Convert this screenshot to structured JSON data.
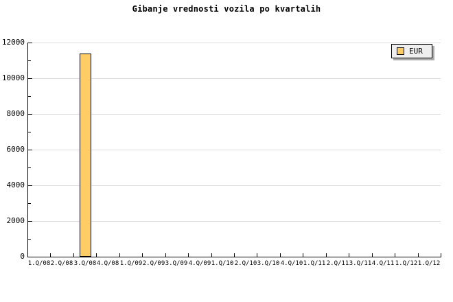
{
  "title": "Gibanje vrednosti vozila po kvartalih",
  "legend": {
    "label": "EUR"
  },
  "colors": {
    "background": "#FFFFFF",
    "text": "#000000",
    "axis": "#000000",
    "grid": "#DCDCDC",
    "bar_fill": "#FFCC66",
    "bar_border": "#000000",
    "legend_bg": "#EFEFEF",
    "legend_shadow": "#ADADAD"
  },
  "chart_data": {
    "type": "bar",
    "title": "Gibanje vrednosti vozila po kvartalih",
    "categories": [
      "1.Q/08",
      "2.Q/08",
      "3.Q/08",
      "4.Q/08",
      "1.Q/09",
      "2.Q/09",
      "3.Q/09",
      "4.Q/09",
      "1.Q/10",
      "2.Q/10",
      "3.Q/10",
      "4.Q/10",
      "1.Q/11",
      "2.Q/11",
      "3.Q/11",
      "4.Q/11",
      "1.Q/12",
      "1.Q/12"
    ],
    "series": [
      {
        "name": "EUR",
        "values": [
          0,
          0,
          11380,
          0,
          0,
          0,
          0,
          0,
          0,
          0,
          0,
          0,
          0,
          0,
          0,
          0,
          0,
          0
        ]
      }
    ],
    "xlabel": "",
    "ylabel": "",
    "ylim": [
      0,
      12000
    ],
    "ytick_major": 2000,
    "ytick_minor": 1000,
    "ytick_labels": [
      "0",
      "2000",
      "4000",
      "6000",
      "8000",
      "10000",
      "12000"
    ],
    "grid": "horizontal-major",
    "legend_position": "top-right",
    "legend_entries": [
      "EUR"
    ]
  }
}
